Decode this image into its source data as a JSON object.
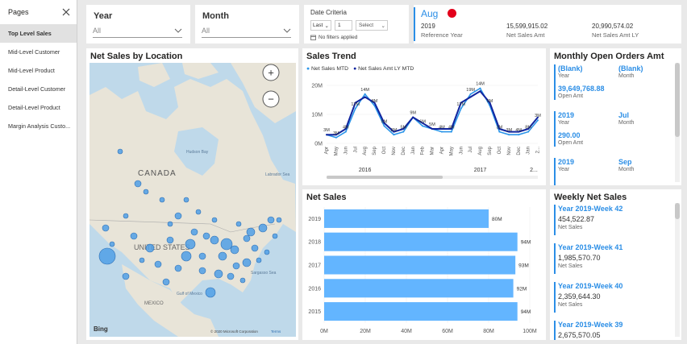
{
  "pages_panel": {
    "title": "Pages",
    "items": [
      "Top Level Sales",
      "Mid-Level Customer",
      "Mid-Level Product",
      "Detail-Level Customer",
      "Detail-Level Product",
      "Margin Analysis Custo..."
    ]
  },
  "slicers": {
    "year": {
      "label": "Year",
      "value": "All"
    },
    "month": {
      "label": "Month",
      "value": "All"
    }
  },
  "date_criteria": {
    "title": "Date Criteria",
    "mode": "Last",
    "number": "1",
    "unit": "Select",
    "filters_note": "No filters applied"
  },
  "kpi": {
    "month": "Aug",
    "year": "2019",
    "year_label": "Reference Year",
    "net_sales": "15,599,915.02",
    "net_sales_label": "Net Sales Amt",
    "net_sales_ly": "20,990,574.02",
    "net_sales_ly_label": "Net Sales Amt LY",
    "indicator_color": "#e3001b"
  },
  "map": {
    "title": "Net Sales by Location",
    "labels": {
      "canada": "CANADA",
      "us": "UNITED STATES",
      "mexico": "MEXICO",
      "hudson": "Hudson Bay",
      "labrador": "Labrador Sea",
      "gulf": "Gulf of Mexico",
      "sargasso": "Sargasso Sea"
    },
    "attribution": "© 2020 Microsoft Corporation",
    "terms": "Terms",
    "bing": "Bing",
    "zoom_in": "+",
    "zoom_out": "−"
  },
  "sales_trend": {
    "title": "Sales Trend",
    "legend": [
      "Net Sales MTD",
      "Net Sales Amt LY MTD"
    ],
    "year_labels": [
      "2016",
      "2017",
      "2..."
    ]
  },
  "open_orders": {
    "title": "Monthly Open Orders Amt",
    "cards": [
      {
        "year": "(Blank)",
        "year_label": "Year",
        "month": "(Blank)",
        "month_label": "Month",
        "amt": "39,649,768.88",
        "amt_label": "Open Amt"
      },
      {
        "year": "2019",
        "year_label": "Year",
        "month": "Jul",
        "month_label": "Month",
        "amt": "290.00",
        "amt_label": "Open Amt"
      },
      {
        "year": "2019",
        "year_label": "Year",
        "month": "Sep",
        "month_label": "Month"
      }
    ]
  },
  "weekly": {
    "title": "Weekly Net Sales",
    "items": [
      {
        "week": "Year 2019-Week 42",
        "value": "454,522.87",
        "label": "Net Sales"
      },
      {
        "week": "Year 2019-Week 41",
        "value": "1,985,570.70",
        "label": "Net Sales"
      },
      {
        "week": "Year 2019-Week 40",
        "value": "2,359,644.30",
        "label": "Net Sales"
      },
      {
        "week": "Year 2019-Week 39",
        "value": "2,675,570.05",
        "label": "Net Sales"
      }
    ]
  },
  "chart_data": [
    {
      "type": "line",
      "title": "Sales Trend",
      "x": [
        "Apr",
        "May",
        "Jun",
        "Jul",
        "Aug",
        "Sep",
        "Oct",
        "Nov",
        "Dec",
        "Jan",
        "Feb",
        "Mar",
        "Apr",
        "May",
        "Jun",
        "Jul",
        "Aug",
        "Sep",
        "Oct",
        "Nov",
        "Dec",
        "Jan",
        "2..."
      ],
      "y_ticks": [
        "0M",
        "10M",
        "20M"
      ],
      "ylim": [
        0,
        20
      ],
      "series": [
        {
          "name": "Net Sales MTD",
          "color": "#2b95e9",
          "values": [
            3,
            2,
            4,
            12,
            17,
            13,
            6,
            3,
            4,
            9,
            6,
            5,
            4,
            4,
            12,
            17,
            19,
            13,
            4,
            3,
            3,
            4,
            8
          ]
        },
        {
          "name": "Net Sales Amt LY MTD",
          "color": "#10249e",
          "values": [
            3,
            3,
            5,
            14,
            16,
            14,
            7,
            4,
            5,
            9,
            7,
            5,
            5,
            5,
            14,
            16,
            18,
            14,
            5,
            4,
            4,
            5,
            9
          ]
        }
      ],
      "data_labels": [
        "3M",
        "3M",
        "4M",
        "17M",
        "14M",
        "8M",
        "5M",
        "3M",
        "5M",
        "9M",
        "6M",
        "5M",
        "4M",
        "4M",
        "17M",
        "19M",
        "14M",
        "5M",
        "3M",
        "3M",
        "4M",
        "8M",
        "3M",
        "3M"
      ]
    },
    {
      "type": "bar",
      "title": "Net Sales",
      "orientation": "horizontal",
      "categories": [
        "2019",
        "2018",
        "2017",
        "2016",
        "2015"
      ],
      "values": [
        80,
        94,
        93,
        92,
        94
      ],
      "value_labels": [
        "80M",
        "94M",
        "93M",
        "92M",
        "94M"
      ],
      "x_ticks": [
        "0M",
        "20M",
        "40M",
        "60M",
        "80M",
        "100M"
      ],
      "xlim": [
        0,
        100
      ],
      "color": "#63b5ff"
    }
  ]
}
